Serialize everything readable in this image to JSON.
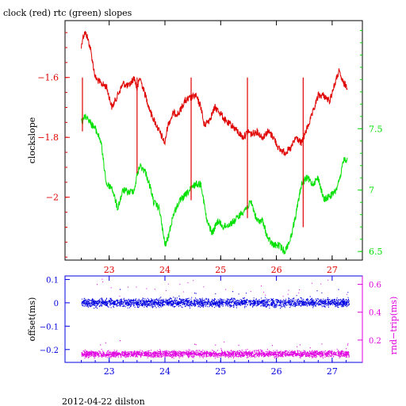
{
  "figure": {
    "title": "clock (red) rtc (green) slopes",
    "footer": "2012-04-22 dilston"
  },
  "colors": {
    "clock": "#e00000",
    "rtc": "#00e000",
    "offset": "#0000e0",
    "roundtrip": "#e000e0",
    "axis": "#000000"
  },
  "chart_data": [
    {
      "type": "line",
      "xlim": [
        22.35,
        27.4
      ],
      "x_ticks": [
        23,
        24,
        25,
        26,
        27
      ],
      "x_tick_labels": [
        "23",
        "24",
        "25",
        "26",
        "27"
      ],
      "ylabel": "clockslope",
      "ylim": [
        -2.21,
        -1.41
      ],
      "y_ticks": [
        -1.6,
        -1.8,
        -2
      ],
      "y_tick_labels": [
        "−1.6",
        "−1.8",
        "−2"
      ],
      "y2lim": [
        6.43,
        8.38
      ],
      "y2_ticks": [
        7.5,
        7,
        6.5
      ],
      "y2_tick_labels": [
        "7.5",
        "7",
        "6.5"
      ],
      "series": [
        {
          "name": "clock",
          "axis": "left",
          "x": [
            22.5,
            22.52,
            22.56,
            22.6,
            22.66,
            22.75,
            22.85,
            22.95,
            23.05,
            23.15,
            23.25,
            23.35,
            23.45,
            23.5,
            23.55,
            23.65,
            23.75,
            23.8,
            23.9,
            24.0,
            24.05,
            24.15,
            24.25,
            24.35,
            24.45,
            24.55,
            24.65,
            24.7,
            24.8,
            24.9,
            25.0,
            25.1,
            25.2,
            25.3,
            25.4,
            25.5,
            25.55,
            25.65,
            25.75,
            25.85,
            25.95,
            26.05,
            26.15,
            26.25,
            26.35,
            26.45,
            26.55,
            26.65,
            26.75,
            26.85,
            26.95,
            27.05,
            27.12,
            27.2,
            27.27
          ],
          "values": [
            -1.5,
            -1.47,
            -1.45,
            -1.46,
            -1.5,
            -1.6,
            -1.62,
            -1.63,
            -1.7,
            -1.66,
            -1.62,
            -1.63,
            -1.6,
            -1.64,
            -1.6,
            -1.66,
            -1.72,
            -1.74,
            -1.78,
            -1.82,
            -1.76,
            -1.72,
            -1.72,
            -1.68,
            -1.67,
            -1.66,
            -1.7,
            -1.76,
            -1.74,
            -1.7,
            -1.72,
            -1.75,
            -1.76,
            -1.78,
            -1.8,
            -1.78,
            -1.79,
            -1.78,
            -1.8,
            -1.78,
            -1.8,
            -1.84,
            -1.85,
            -1.84,
            -1.8,
            -1.82,
            -1.77,
            -1.72,
            -1.66,
            -1.66,
            -1.68,
            -1.62,
            -1.58,
            -1.62,
            -1.63
          ]
        },
        {
          "name": "rtc",
          "axis": "right",
          "x": [
            22.5,
            22.52,
            22.56,
            22.6,
            22.66,
            22.75,
            22.8,
            22.85,
            22.95,
            23.05,
            23.15,
            23.25,
            23.35,
            23.45,
            23.5,
            23.55,
            23.65,
            23.75,
            23.8,
            23.9,
            24.0,
            24.05,
            24.15,
            24.25,
            24.35,
            24.45,
            24.55,
            24.65,
            24.75,
            24.85,
            24.95,
            25.05,
            25.15,
            25.25,
            25.35,
            25.45,
            25.55,
            25.65,
            25.75,
            25.85,
            25.95,
            26.05,
            26.15,
            26.25,
            26.35,
            26.45,
            26.55,
            26.65,
            26.75,
            26.85,
            26.95,
            27.05,
            27.15,
            27.2,
            27.27
          ],
          "values": [
            7.6,
            7.55,
            7.6,
            7.6,
            7.55,
            7.5,
            7.45,
            7.4,
            7.05,
            7.02,
            6.85,
            7.0,
            6.98,
            7.0,
            7.12,
            7.2,
            7.15,
            7.0,
            6.9,
            6.85,
            6.55,
            6.6,
            6.8,
            6.9,
            6.95,
            7.0,
            7.05,
            7.05,
            6.75,
            6.65,
            6.75,
            6.7,
            6.72,
            6.75,
            6.8,
            6.85,
            6.9,
            6.75,
            6.75,
            6.6,
            6.55,
            6.55,
            6.5,
            6.6,
            6.8,
            7.05,
            7.1,
            7.05,
            7.1,
            6.92,
            6.95,
            6.98,
            7.1,
            7.25,
            7.25
          ]
        }
      ]
    },
    {
      "type": "scatter",
      "xlim": [
        22.35,
        27.4
      ],
      "x_ticks": [
        23,
        24,
        25,
        26,
        27
      ],
      "x_tick_labels": [
        "23",
        "24",
        "25",
        "26",
        "27"
      ],
      "ylabel": "offset(ms)",
      "ylim": [
        -0.255,
        0.115
      ],
      "y_ticks": [
        0.1,
        0,
        -0.1,
        -0.2
      ],
      "y_tick_labels": [
        "0.1",
        "0",
        "−0.1",
        "−0.2"
      ],
      "y2label": "rnd−trip(ms)",
      "y2lim": [
        0.04,
        0.66
      ],
      "y2_ticks": [
        0.6,
        0.4,
        0.2
      ],
      "y2_tick_labels": [
        "0.6",
        "0.4",
        "0.2"
      ],
      "series": [
        {
          "name": "offset",
          "axis": "left",
          "x": [
            22.5,
            27.3
          ],
          "values": [
            0.0,
            0.0
          ],
          "spread": 0.01
        },
        {
          "name": "rnd-trip",
          "axis": "right",
          "x": [
            22.5,
            27.3
          ],
          "values": [
            0.1,
            0.1
          ],
          "spread": 0.01
        }
      ]
    }
  ]
}
